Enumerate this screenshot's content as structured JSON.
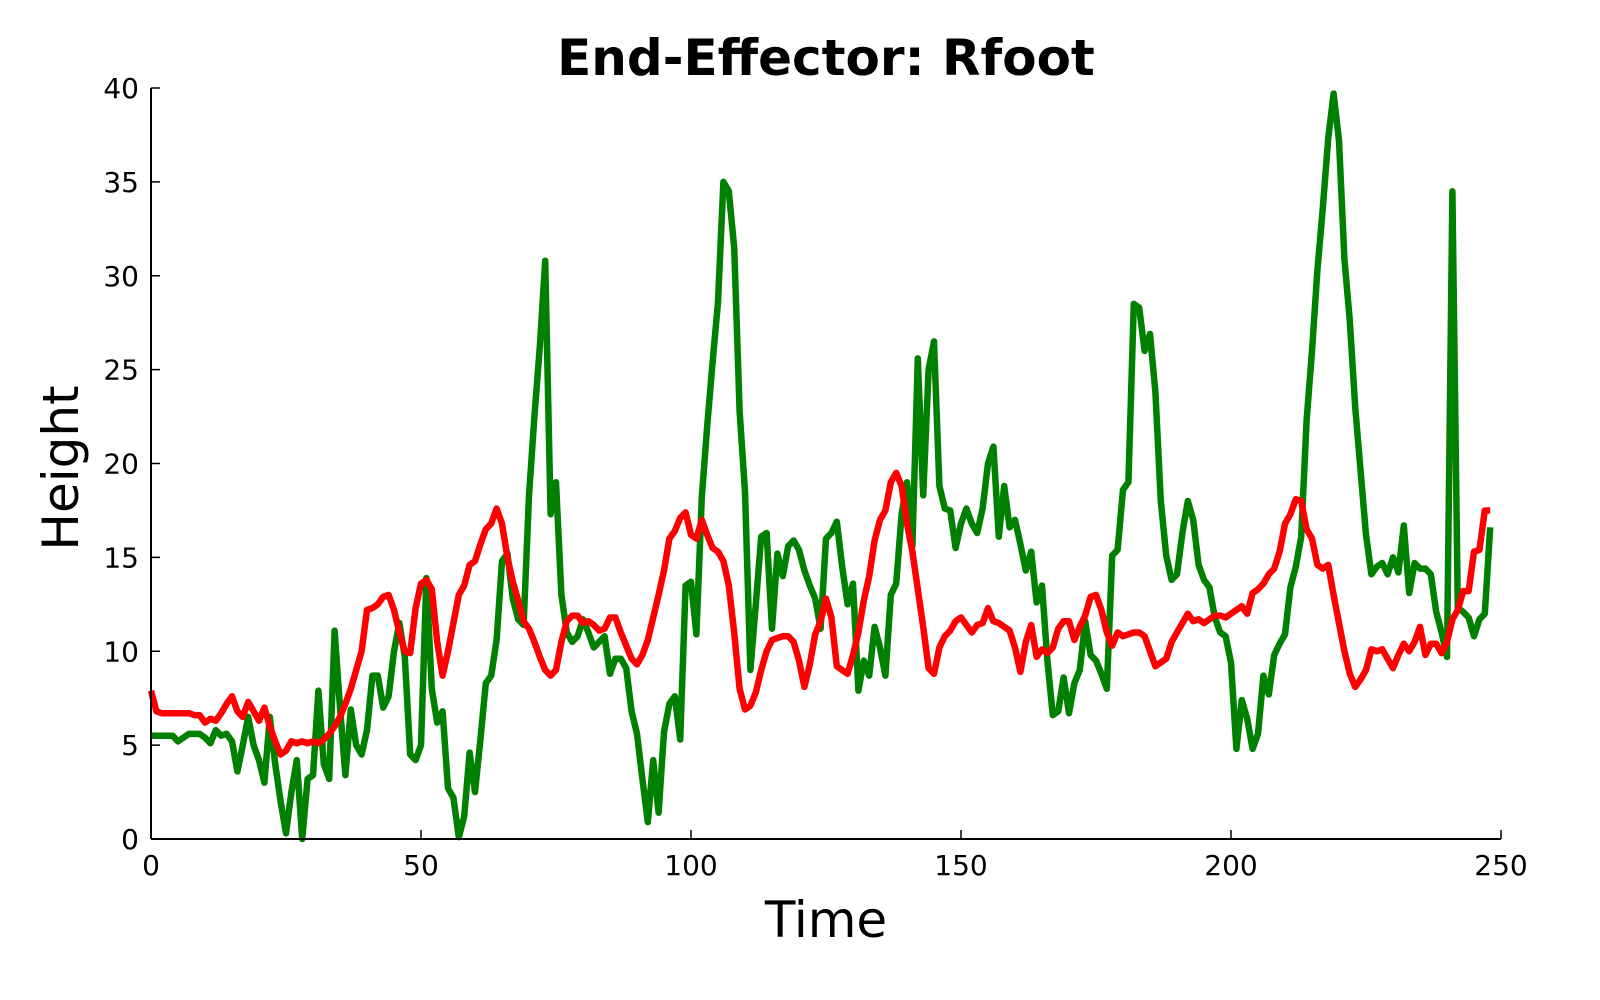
{
  "chart_data": {
    "type": "line",
    "title": "End-Effector: Rfoot",
    "xlabel": "Time",
    "ylabel": "Height",
    "x": [
      0,
      1,
      2,
      3,
      4,
      5,
      6,
      7,
      8,
      9,
      10,
      11,
      12,
      13,
      14,
      15,
      16,
      17,
      18,
      19,
      20,
      21,
      22,
      23,
      24,
      25,
      26,
      27,
      28,
      29,
      30,
      31,
      32,
      33,
      34,
      35,
      36,
      37,
      38,
      39,
      40,
      41,
      42,
      43,
      44,
      45,
      46,
      47,
      48,
      49,
      50,
      51,
      52,
      53,
      54,
      55,
      56,
      57,
      58,
      59,
      60,
      61,
      62,
      63,
      64,
      65,
      66,
      67,
      68,
      69,
      70,
      71,
      72,
      73,
      74,
      75,
      76,
      77,
      78,
      79,
      80,
      81,
      82,
      83,
      84,
      85,
      86,
      87,
      88,
      89,
      90,
      91,
      92,
      93,
      94,
      95,
      96,
      97,
      98,
      99,
      100,
      101,
      102,
      103,
      104,
      105,
      106,
      107,
      108,
      109,
      110,
      111,
      112,
      113,
      114,
      115,
      116,
      117,
      118,
      119,
      120,
      121,
      122,
      123,
      124,
      125,
      126,
      127,
      128,
      129,
      130,
      131,
      132,
      133,
      134,
      135,
      136,
      137,
      138,
      139,
      140,
      141,
      142,
      143,
      144,
      145,
      146,
      147,
      148,
      149,
      150,
      151,
      152,
      153,
      154,
      155,
      156,
      157,
      158,
      159,
      160,
      161,
      162,
      163,
      164,
      165,
      166,
      167,
      168,
      169,
      170,
      171,
      172,
      173,
      174,
      175,
      176,
      177,
      178,
      179,
      180,
      181,
      182,
      183,
      184,
      185,
      186,
      187,
      188,
      189,
      190,
      191,
      192,
      193,
      194,
      195,
      196,
      197,
      198,
      199,
      200,
      201,
      202,
      203,
      204,
      205,
      206,
      207,
      208,
      209,
      210,
      211,
      212,
      213,
      214,
      215,
      216,
      217,
      218,
      219,
      220,
      221,
      222,
      223,
      224,
      225,
      226,
      227,
      228,
      229,
      230,
      231,
      232,
      233,
      234,
      235,
      236,
      237,
      238,
      239,
      240,
      241,
      242,
      243,
      244,
      245,
      246,
      247,
      248
    ],
    "series": [
      {
        "color": "#008000",
        "values": [
          5.5,
          5.5,
          5.5,
          5.5,
          5.5,
          5.2,
          5.4,
          5.6,
          5.6,
          5.6,
          5.4,
          5.1,
          5.8,
          5.5,
          5.6,
          5.2,
          3.6,
          5.0,
          6.5,
          5.0,
          4.2,
          3.0,
          6.5,
          4.0,
          2.0,
          0.3,
          2.5,
          4.2,
          0,
          3.2,
          3.4,
          7.9,
          4.0,
          3.2,
          11.1,
          7.0,
          3.4,
          6.9,
          5.0,
          4.5,
          5.8,
          8.7,
          8.7,
          7.0,
          7.6,
          10.0,
          11.5,
          9.7,
          4.5,
          4.2,
          5.0,
          13.9,
          8.0,
          6.2,
          6.8,
          2.7,
          2.2,
          0.1,
          1.2,
          4.6,
          2.5,
          5.3,
          8.3,
          8.7,
          10.6,
          14.8,
          15.2,
          12.8,
          11.7,
          11.4,
          18.3,
          22.5,
          26.2,
          30.8,
          17.3,
          19.0,
          13.0,
          11.0,
          10.5,
          10.8,
          11.7,
          11.0,
          10.2,
          10.5,
          10.8,
          8.8,
          9.6,
          9.6,
          9.1,
          6.8,
          5.6,
          3.2,
          0.9,
          4.2,
          1.4,
          5.7,
          7.2,
          7.6,
          5.3,
          13.5,
          13.7,
          10.9,
          18.2,
          22.0,
          25.4,
          28.6,
          35.0,
          34.5,
          31.5,
          22.8,
          18.5,
          9.0,
          12.5,
          16.1,
          16.3,
          11.2,
          15.2,
          14.0,
          15.6,
          15.9,
          15.4,
          14.3,
          13.5,
          12.8,
          11.2,
          16.0,
          16.3,
          16.9,
          14.5,
          12.5,
          13.6,
          7.9,
          9.5,
          8.7,
          11.3,
          10.2,
          8.7,
          13.0,
          13.6,
          17.3,
          19.0,
          15.6,
          25.6,
          18.3,
          25.0,
          26.5,
          18.8,
          17.6,
          17.5,
          15.5,
          16.8,
          17.6,
          16.8,
          16.3,
          17.6,
          20.0,
          20.9,
          16.1,
          18.8,
          16.6,
          17.0,
          15.7,
          14.3,
          15.3,
          12.6,
          13.5,
          9.5,
          6.6,
          6.8,
          8.6,
          6.7,
          8.3,
          9.0,
          11.6,
          9.8,
          9.5,
          8.8,
          8.0,
          15.1,
          15.4,
          18.6,
          19.0,
          28.5,
          28.3,
          26.0,
          26.9,
          23.8,
          18.0,
          15.1,
          13.8,
          14.1,
          16.3,
          18.0,
          17.0,
          14.6,
          13.8,
          13.4,
          11.8,
          11.0,
          10.8,
          9.4,
          4.8,
          7.4,
          6.4,
          4.8,
          5.6,
          8.7,
          7.7,
          9.8,
          10.4,
          10.9,
          13.4,
          14.5,
          16.1,
          22.3,
          26.0,
          30.3,
          33.6,
          37.3,
          39.7,
          37.2,
          30.9,
          27.6,
          23.0,
          19.6,
          16.2,
          14.1,
          14.5,
          14.7,
          14.1,
          15.0,
          14.2,
          16.7,
          13.1,
          14.7,
          14.4,
          14.4,
          14.1,
          12.1,
          11.0,
          9.7,
          34.5,
          12.3,
          12.1,
          11.8,
          10.8,
          11.7,
          12.0,
          16.6
        ]
      },
      {
        "color": "#ff0000",
        "values": [
          7.9,
          6.8,
          6.7,
          6.7,
          6.7,
          6.7,
          6.7,
          6.7,
          6.6,
          6.6,
          6.2,
          6.4,
          6.3,
          6.7,
          7.2,
          7.6,
          6.8,
          6.5,
          7.3,
          6.8,
          6.3,
          7.0,
          6.0,
          5.2,
          4.5,
          4.7,
          5.2,
          5.1,
          5.2,
          5.1,
          5.2,
          5.1,
          5.3,
          5.6,
          6.0,
          6.5,
          7.2,
          8.0,
          9.0,
          10.0,
          12.2,
          12.3,
          12.5,
          12.9,
          13.0,
          12.2,
          11.0,
          10.0,
          9.9,
          12.3,
          13.6,
          13.8,
          13.3,
          10.5,
          8.7,
          10.0,
          11.5,
          13.0,
          13.5,
          14.6,
          14.8,
          15.7,
          16.5,
          16.8,
          17.6,
          16.8,
          15.0,
          13.7,
          12.7,
          11.6,
          11.2,
          10.5,
          9.7,
          9.0,
          8.7,
          9.0,
          10.5,
          11.6,
          11.9,
          11.9,
          11.5,
          11.6,
          11.4,
          11.1,
          11.2,
          11.8,
          11.8,
          11.0,
          10.3,
          9.6,
          9.3,
          9.8,
          10.6,
          11.8,
          13.0,
          14.3,
          16.0,
          16.4,
          17.1,
          17.4,
          16.2,
          16.0,
          17.0,
          16.2,
          15.5,
          15.3,
          14.8,
          13.5,
          11.0,
          8.0,
          6.9,
          7.1,
          7.8,
          9.0,
          10.0,
          10.6,
          10.7,
          10.8,
          10.8,
          10.5,
          9.5,
          8.1,
          9.3,
          10.9,
          11.6,
          12.8,
          11.8,
          9.2,
          9.0,
          8.8,
          9.8,
          11.0,
          12.7,
          14.0,
          15.9,
          17.0,
          17.5,
          19.0,
          19.5,
          18.8,
          16.8,
          15.3,
          13.3,
          11.3,
          9.1,
          8.8,
          10.2,
          10.8,
          11.1,
          11.6,
          11.8,
          11.4,
          11.0,
          11.4,
          11.5,
          12.3,
          11.6,
          11.5,
          11.3,
          11.1,
          10.2,
          8.9,
          10.5,
          11.4,
          9.7,
          10.1,
          9.9,
          10.2,
          11.2,
          11.6,
          11.6,
          10.6,
          11.3,
          11.9,
          12.9,
          13.0,
          12.2,
          11.0,
          10.3,
          11.0,
          10.8,
          10.9,
          11.0,
          11.0,
          10.8,
          10.0,
          9.2,
          9.4,
          9.6,
          10.5,
          11.0,
          11.5,
          12.0,
          11.6,
          11.7,
          11.5,
          11.7,
          11.9,
          11.9,
          11.8,
          12.0,
          12.2,
          12.4,
          12.0,
          13.1,
          13.3,
          13.6,
          14.1,
          14.4,
          15.3,
          16.8,
          17.3,
          18.1,
          18.0,
          16.5,
          16.0,
          14.6,
          14.4,
          14.6,
          13.0,
          11.5,
          10.0,
          8.8,
          8.1,
          8.5,
          9.0,
          10.1,
          10.0,
          10.1,
          9.6,
          9.1,
          9.8,
          10.4,
          10.0,
          10.5,
          11.3,
          9.8,
          10.4,
          10.4,
          9.9,
          10.5,
          11.7,
          12.2,
          13.2,
          13.2,
          15.3,
          15.4,
          17.5,
          17.5
        ]
      }
    ],
    "xlim": [
      0,
      250
    ],
    "xticks": [
      0,
      50,
      100,
      150,
      200,
      250
    ],
    "ylim": [
      0,
      40
    ],
    "yticks": [
      0,
      5,
      10,
      15,
      20,
      25,
      30,
      35,
      40
    ]
  }
}
